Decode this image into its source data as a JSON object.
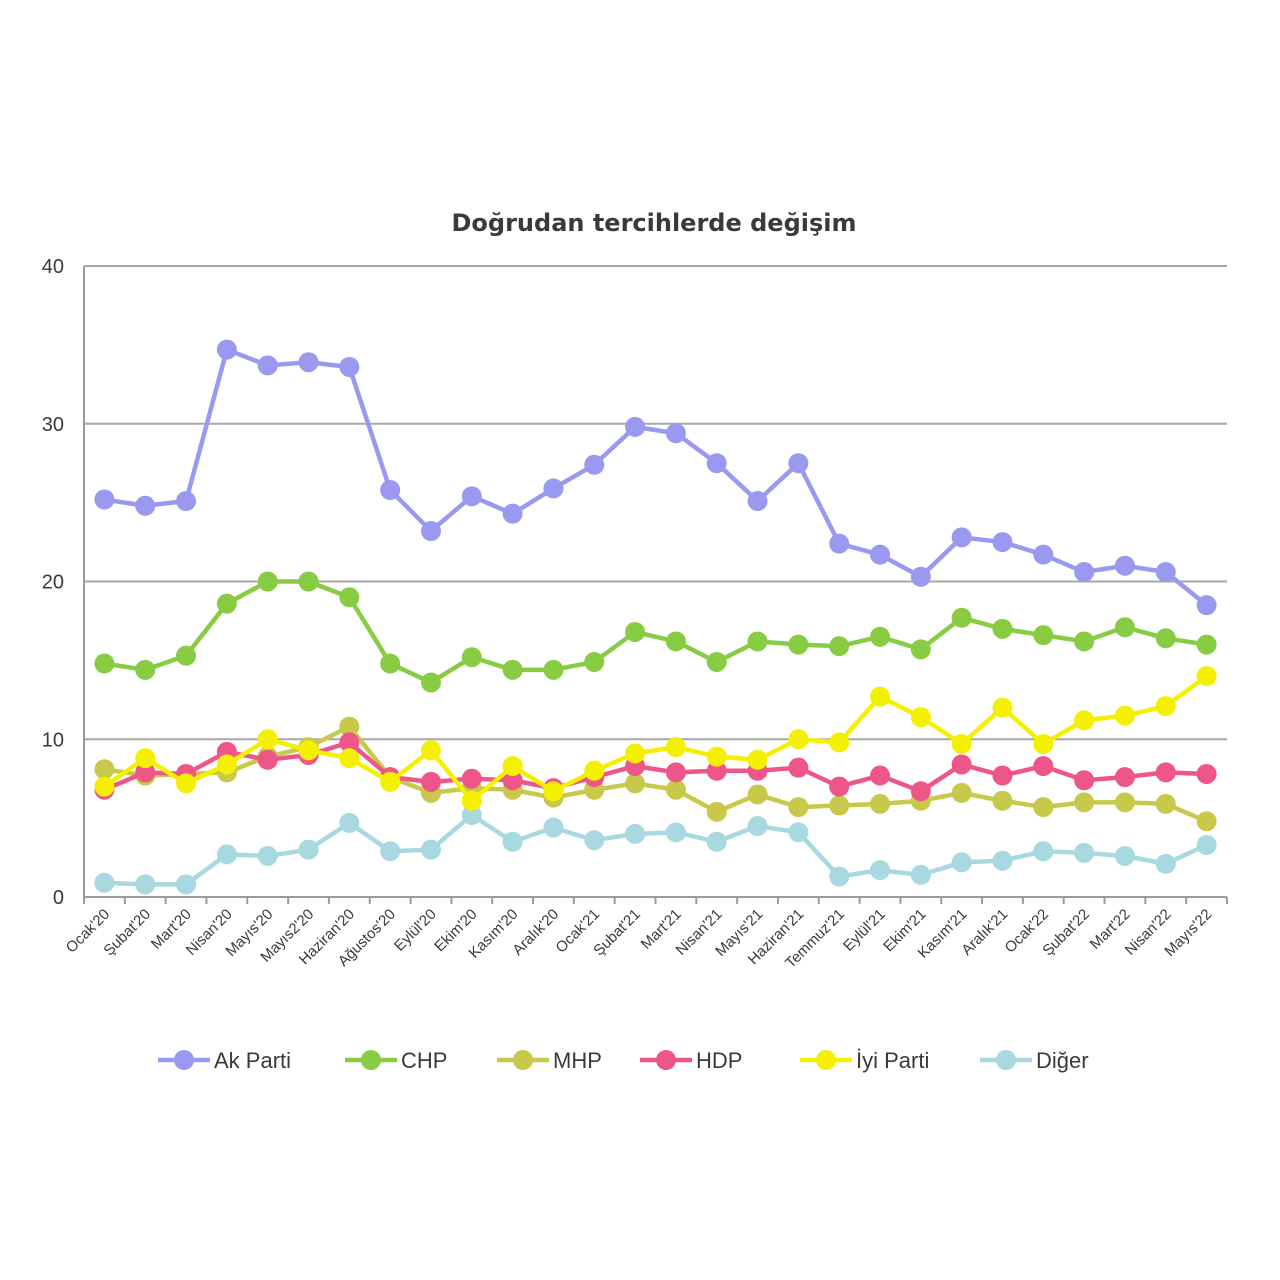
{
  "chart_data": {
    "type": "line",
    "title": "Doğrudan tercihlerde değişim",
    "xlabel": "",
    "ylabel": "",
    "ylim": [
      0,
      40
    ],
    "yticks": [
      "0",
      "10",
      "20",
      "30",
      "40"
    ],
    "grid": "horizontal",
    "legend": "bottom",
    "categories": [
      "Ocak'20",
      "Şubat'20",
      "Mart'20",
      "Nisan'20",
      "Mayıs'20",
      "Mayıs2'20",
      "Haziran'20",
      "Ağustos'20",
      "Eylül'20",
      "Ekim'20",
      "Kasım'20",
      "Aralık'20",
      "Ocak'21",
      "Şubat'21",
      "Mart'21",
      "Nisan'21",
      "Mayıs'21",
      "Haziran'21",
      "Temmuz'21",
      "Eylül'21",
      "Ekim'21",
      "Kasım'21",
      "Aralık'21",
      "Ocak'22",
      "Şubat'22",
      "Mart'22",
      "Nisan'22",
      "Mayıs'22"
    ],
    "series": [
      {
        "name": "Ak Parti",
        "color": "#9999f0",
        "values": [
          25.2,
          24.8,
          25.1,
          34.7,
          33.7,
          33.9,
          33.6,
          25.8,
          23.2,
          25.4,
          24.3,
          25.9,
          27.4,
          29.8,
          29.4,
          27.5,
          25.1,
          27.5,
          22.4,
          21.7,
          20.3,
          22.8,
          22.5,
          21.7,
          20.6,
          21.0,
          20.6,
          18.5
        ]
      },
      {
        "name": "CHP",
        "color": "#88cc44",
        "values": [
          14.8,
          14.4,
          15.3,
          18.6,
          20.0,
          20.0,
          19.0,
          14.8,
          13.6,
          15.2,
          14.4,
          14.4,
          14.9,
          16.8,
          16.2,
          14.9,
          16.2,
          16.0,
          15.9,
          16.5,
          15.7,
          17.7,
          17.0,
          16.6,
          16.2,
          17.1,
          16.4,
          16.0
        ]
      },
      {
        "name": "MHP",
        "color": "#c8c84a",
        "values": [
          8.1,
          7.7,
          7.8,
          7.9,
          8.9,
          9.5,
          10.8,
          7.6,
          6.6,
          6.9,
          6.8,
          6.3,
          6.8,
          7.2,
          6.8,
          5.4,
          6.5,
          5.7,
          5.8,
          5.9,
          6.1,
          6.6,
          6.1,
          5.7,
          6.0,
          6.0,
          5.9,
          4.8
        ]
      },
      {
        "name": "HDP",
        "color": "#ee5588",
        "values": [
          6.8,
          7.9,
          7.8,
          9.2,
          8.7,
          9.0,
          9.8,
          7.6,
          7.3,
          7.5,
          7.4,
          6.9,
          7.6,
          8.3,
          7.9,
          8.0,
          8.0,
          8.2,
          7.0,
          7.7,
          6.7,
          8.4,
          7.7,
          8.3,
          7.4,
          7.6,
          7.9,
          7.8
        ]
      },
      {
        "name": "İyi Parti",
        "color": "#f5f000",
        "values": [
          7.0,
          8.8,
          7.2,
          8.4,
          10.0,
          9.3,
          8.8,
          7.3,
          9.3,
          6.1,
          8.3,
          6.7,
          8.0,
          9.1,
          9.5,
          8.9,
          8.7,
          10.0,
          9.8,
          12.7,
          11.4,
          9.7,
          12.0,
          9.7,
          11.2,
          11.5,
          12.1,
          14.0
        ]
      },
      {
        "name": "Diğer",
        "color": "#a8d8e0",
        "values": [
          0.9,
          0.8,
          0.8,
          2.7,
          2.6,
          3.0,
          4.7,
          2.9,
          3.0,
          5.2,
          3.5,
          4.4,
          3.6,
          4.0,
          4.1,
          3.5,
          4.5,
          4.1,
          1.3,
          1.7,
          1.4,
          2.2,
          2.3,
          2.9,
          2.8,
          2.6,
          2.1,
          3.3
        ]
      }
    ]
  }
}
